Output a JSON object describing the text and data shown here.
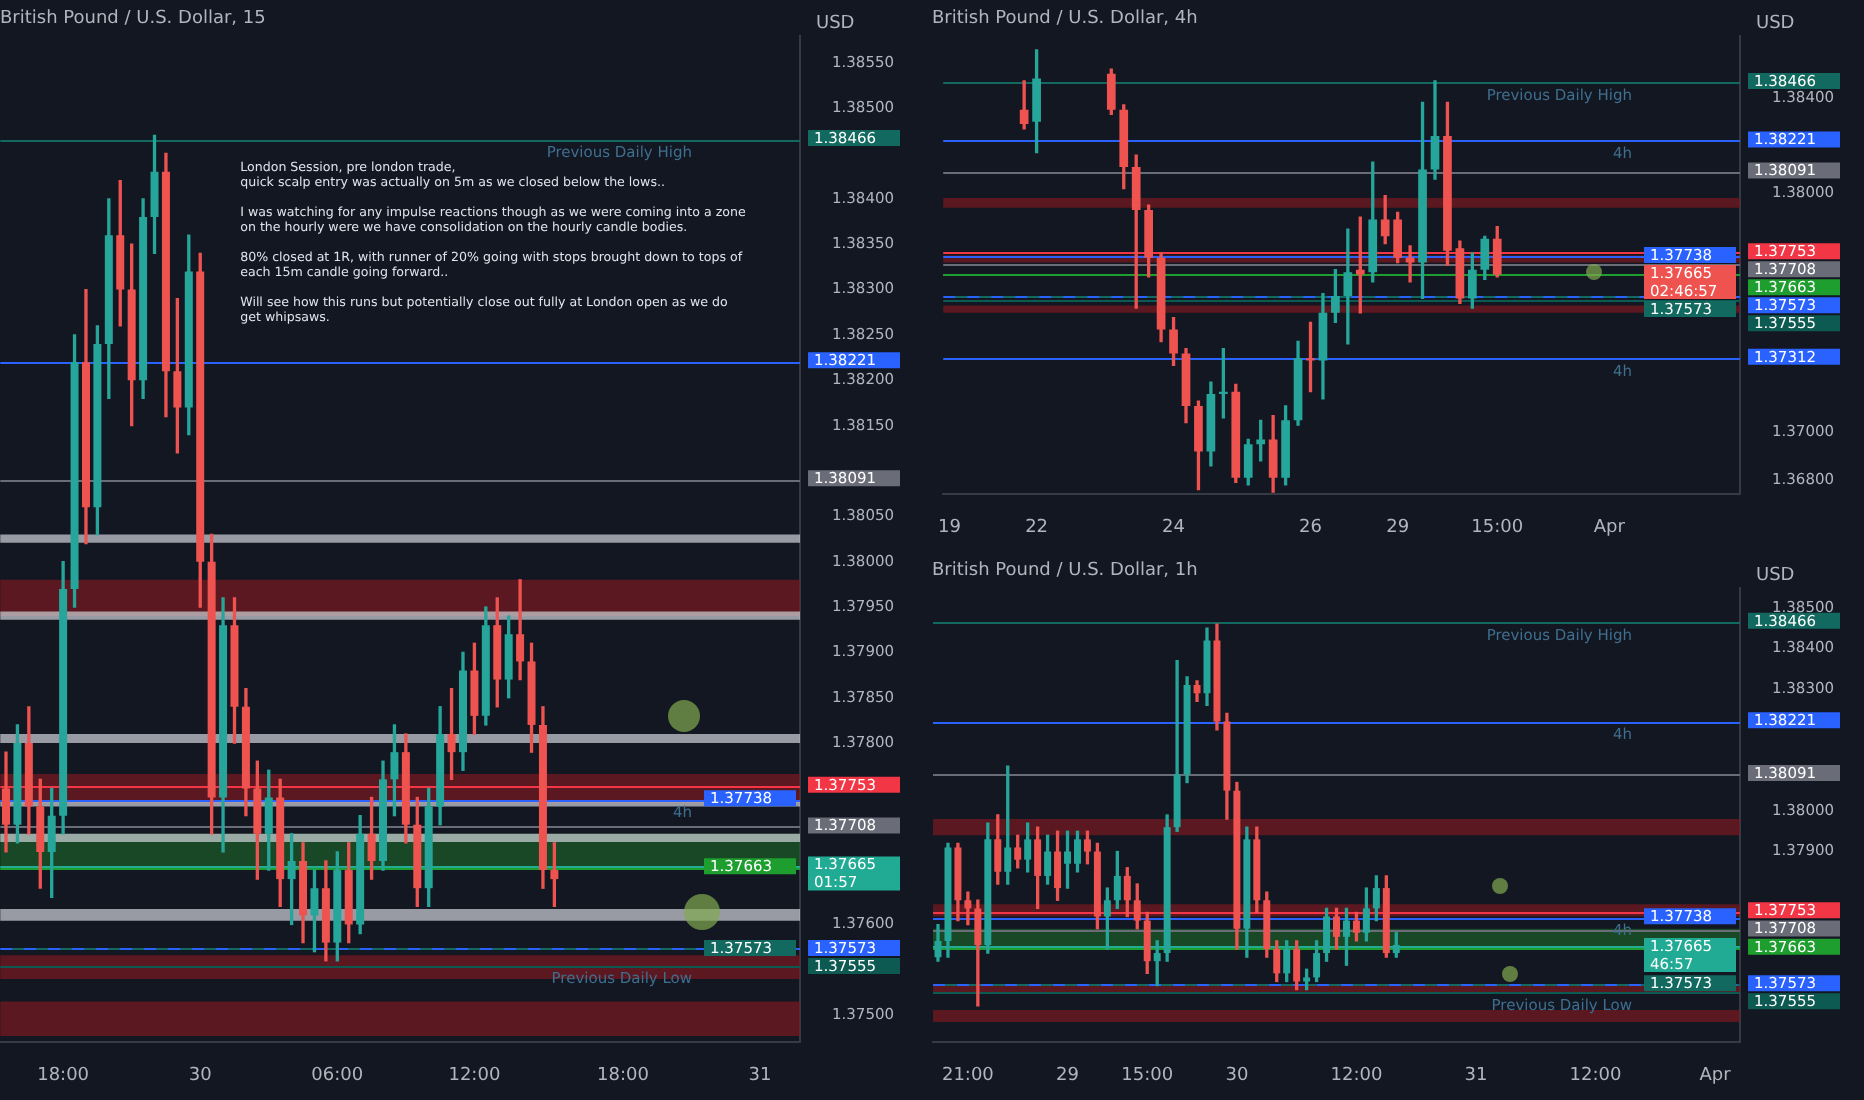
{
  "chart_data": [
    {
      "type": "candlestick",
      "title": "British Pound / U.S. Dollar, 15",
      "ylabel": "USD",
      "categories": [
        null,
        null,
        null,
        null,
        null,
        "18:00",
        null,
        null,
        null,
        null,
        null,
        null,
        null,
        null,
        null,
        null,
        null,
        "30",
        null,
        null,
        null,
        null,
        null,
        null,
        null,
        null,
        null,
        null,
        null,
        "06:00",
        null,
        null,
        null,
        null,
        null,
        null,
        null,
        null,
        null,
        null,
        null,
        "12:00",
        null,
        null,
        null,
        null,
        null,
        null,
        null,
        null,
        null,
        null,
        null,
        null,
        "18:00",
        null,
        null,
        null,
        null,
        null,
        null,
        null,
        null,
        null,
        null,
        null,
        "31",
        null,
        null,
        null
      ],
      "ohlc": [
        [
          1.3775,
          1.3779,
          1.3768,
          1.3771
        ],
        [
          1.3771,
          1.3782,
          1.3769,
          1.378
        ],
        [
          1.378,
          1.3784,
          1.377,
          1.3773
        ],
        [
          1.3773,
          1.3776,
          1.3764,
          1.3768
        ],
        [
          1.3768,
          1.3775,
          1.3763,
          1.3772
        ],
        [
          1.3772,
          1.38,
          1.377,
          1.3797
        ],
        [
          1.3797,
          1.3825,
          1.3795,
          1.3822
        ],
        [
          1.3822,
          1.383,
          1.3802,
          1.3806
        ],
        [
          1.3806,
          1.3826,
          1.3803,
          1.3824
        ],
        [
          1.3824,
          1.384,
          1.3818,
          1.3836
        ],
        [
          1.3836,
          1.3842,
          1.3826,
          1.383
        ],
        [
          1.383,
          1.3835,
          1.3815,
          1.382
        ],
        [
          1.382,
          1.384,
          1.3818,
          1.3838
        ],
        [
          1.3838,
          1.3847,
          1.3834,
          1.3843
        ],
        [
          1.3843,
          1.3845,
          1.3816,
          1.3821
        ],
        [
          1.3821,
          1.3829,
          1.3812,
          1.3817
        ],
        [
          1.3817,
          1.3836,
          1.3814,
          1.3832
        ],
        [
          1.3832,
          1.3834,
          1.3795,
          1.38
        ],
        [
          1.38,
          1.3803,
          1.377,
          1.3774
        ],
        [
          1.3774,
          1.3796,
          1.3768,
          1.3793
        ],
        [
          1.3793,
          1.3796,
          1.378,
          1.3784
        ],
        [
          1.3784,
          1.3786,
          1.3772,
          1.3775
        ],
        [
          1.3775,
          1.3778,
          1.3765,
          1.377
        ],
        [
          1.377,
          1.3777,
          1.3766,
          1.3774
        ],
        [
          1.3774,
          1.3776,
          1.3762,
          1.3765
        ],
        [
          1.3765,
          1.377,
          1.376,
          1.3767
        ],
        [
          1.3767,
          1.3769,
          1.3758,
          1.3761
        ],
        [
          1.3761,
          1.3766,
          1.3757,
          1.3764
        ],
        [
          1.3764,
          1.3767,
          1.3756,
          1.3758
        ],
        [
          1.3758,
          1.3768,
          1.3756,
          1.3766
        ],
        [
          1.3766,
          1.3769,
          1.3758,
          1.376
        ],
        [
          1.376,
          1.3772,
          1.3759,
          1.377
        ],
        [
          1.377,
          1.3774,
          1.3765,
          1.3767
        ],
        [
          1.3767,
          1.3778,
          1.3766,
          1.3776
        ],
        [
          1.3776,
          1.3782,
          1.3772,
          1.3779
        ],
        [
          1.3779,
          1.3781,
          1.3769,
          1.3771
        ],
        [
          1.3771,
          1.3774,
          1.3762,
          1.3764
        ],
        [
          1.3764,
          1.3775,
          1.3762,
          1.3773
        ],
        [
          1.3773,
          1.3784,
          1.3771,
          1.3781
        ],
        [
          1.3781,
          1.3786,
          1.3776,
          1.3779
        ],
        [
          1.3779,
          1.379,
          1.3777,
          1.3788
        ],
        [
          1.3788,
          1.3791,
          1.3781,
          1.3783
        ],
        [
          1.3783,
          1.3795,
          1.3782,
          1.3793
        ],
        [
          1.3793,
          1.3796,
          1.3784,
          1.3787
        ],
        [
          1.3787,
          1.3794,
          1.3785,
          1.3792
        ],
        [
          1.3792,
          1.3798,
          1.3787,
          1.3789
        ],
        [
          1.3789,
          1.3791,
          1.3779,
          1.3782
        ],
        [
          1.3782,
          1.3784,
          1.3764,
          1.3766
        ],
        [
          1.3766,
          1.3769,
          1.3762,
          1.3765
        ],
        null,
        null,
        null,
        null,
        null,
        null,
        null,
        null,
        null,
        null,
        null,
        null,
        null,
        null,
        null,
        null,
        null,
        null,
        null,
        null,
        null
      ],
      "ylim": [
        1.3747,
        1.3858
      ],
      "yticks": [
        {
          "value": 1.375,
          "label": "1.37500"
        },
        {
          "value": 1.376,
          "label": "1.37600"
        },
        {
          "value": 1.378,
          "label": "1.37800"
        },
        {
          "value": 1.3785,
          "label": "1.37850"
        },
        {
          "value": 1.379,
          "label": "1.37900"
        },
        {
          "value": 1.3795,
          "label": "1.37950"
        },
        {
          "value": 1.38,
          "label": "1.38000"
        },
        {
          "value": 1.3805,
          "label": "1.38050"
        },
        {
          "value": 1.3815,
          "label": "1.38150"
        },
        {
          "value": 1.382,
          "label": "1.38200"
        },
        {
          "value": 1.3825,
          "label": "1.38250"
        },
        {
          "value": 1.383,
          "label": "1.38300"
        },
        {
          "value": 1.3835,
          "label": "1.38350"
        },
        {
          "value": 1.384,
          "label": "1.38400"
        },
        {
          "value": 1.385,
          "label": "1.38500"
        },
        {
          "value": 1.3855,
          "label": "1.38550"
        }
      ],
      "ref_lines": [
        {
          "axis": "y",
          "value": 1.38466,
          "label": "1.38466",
          "color": "#12695f"
        },
        {
          "axis": "y",
          "value": 1.38221,
          "label": "1.38221",
          "color": "#2962ff"
        },
        {
          "axis": "y",
          "value": 1.38091,
          "label": "1.38091",
          "color": "#6a6d78"
        },
        {
          "axis": "y",
          "value": 1.37753,
          "label": "1.37753",
          "color": "#f23645"
        },
        {
          "axis": "y",
          "value": 1.37738,
          "label": "1.37738",
          "color": "#2962ff"
        },
        {
          "axis": "y",
          "value": 1.37708,
          "label": "1.37708",
          "color": "#6a6d78"
        },
        {
          "axis": "y",
          "value": 1.37665,
          "label": "1.37665\n01:57",
          "color": "#22ab94"
        },
        {
          "axis": "y",
          "value": 1.37663,
          "label": "1.37663",
          "color": "#1e9e2e"
        },
        {
          "axis": "y",
          "value": 1.37573,
          "label": "1.37573",
          "color": "#2962ff"
        },
        {
          "axis": "y",
          "value": 1.37573,
          "label": "1.37573",
          "color": "#12695f"
        },
        {
          "axis": "y",
          "value": 1.37555,
          "label": "1.37555",
          "color": "#0d5a52"
        }
      ],
      "bands": [
        {
          "axis": "y",
          "from": 1.3794,
          "to": 1.3798,
          "color": "#7a1a20"
        },
        {
          "axis": "y",
          "from": 1.37734,
          "to": 1.37766,
          "color": "#7a1a20"
        },
        {
          "axis": "y",
          "from": 1.3754,
          "to": 1.37566,
          "color": "#7a1a20"
        },
        {
          "axis": "y",
          "from": 1.37477,
          "to": 1.37515,
          "color": "#7a1a20"
        },
        {
          "axis": "y",
          "from": 1.3766,
          "to": 1.377,
          "color": "#1d5e2a"
        },
        {
          "axis": "y",
          "from": 1.38021,
          "to": 1.3803,
          "color": "#d1d4dc"
        },
        {
          "axis": "y",
          "from": 1.37936,
          "to": 1.37945,
          "color": "#d1d4dc"
        },
        {
          "axis": "y",
          "from": 1.378,
          "to": 1.3781,
          "color": "#d1d4dc"
        },
        {
          "axis": "y",
          "from": 1.3773,
          "to": 1.37736,
          "color": "#d1d4dc"
        },
        {
          "axis": "y",
          "from": 1.37691,
          "to": 1.377,
          "color": "#d1d4dc"
        },
        {
          "axis": "y",
          "from": 1.37604,
          "to": 1.37617,
          "color": "#d1d4dc"
        }
      ],
      "annotations": [
        "London Session, pre london trade,\nquick scalp entry was actually on 5m as we closed below the lows..\n\nI was watching for any impulse reactions though as we were coming into a zone\non the hourly were we have consolidation on the hourly candle bodies.\n\n80% closed at 1R, with runner of 20% going with stops brought down to tops of\neach 15m candle going forward..\n\nWill see how this runs but potentially close out fully at London open as we do\nget whipsaws.",
        {
          "text": "Previous Daily High",
          "y": 1.38466
        },
        {
          "text": "4h",
          "y": 1.37738
        },
        {
          "text": "Previous Daily Low",
          "y": 1.37555
        }
      ]
    },
    {
      "type": "candlestick",
      "title": "British Pound / U.S. Dollar, 4h",
      "ylabel": "USD",
      "categories": [
        "19",
        null,
        null,
        null,
        null,
        null,
        null,
        "22",
        null,
        null,
        null,
        null,
        null,
        null,
        null,
        null,
        null,
        null,
        "24",
        null,
        null,
        null,
        null,
        null,
        null,
        null,
        null,
        null,
        null,
        "26",
        null,
        null,
        null,
        null,
        null,
        null,
        "29",
        null,
        null,
        null,
        null,
        null,
        null,
        null,
        "15:00",
        null,
        null,
        null,
        null,
        null,
        null,
        null,
        null,
        "Apr",
        null,
        null,
        null,
        null,
        null,
        null,
        null,
        null,
        null,
        null
      ],
      "ohlc": [
        null,
        null,
        null,
        null,
        null,
        null,
        [
          1.3835,
          1.3847,
          1.3827,
          1.3829
        ],
        [
          1.383,
          1.386,
          1.3817,
          1.3848
        ],
        null,
        null,
        null,
        null,
        null,
        [
          1.385,
          1.3852,
          1.3833,
          1.3835
        ],
        [
          1.3835,
          1.3837,
          1.3802,
          1.3811
        ],
        [
          1.3811,
          1.3816,
          1.3752,
          1.3793
        ],
        [
          1.3793,
          1.3795,
          1.3765,
          1.3773
        ],
        [
          1.3773,
          1.3775,
          1.3738,
          1.3743
        ],
        [
          1.3743,
          1.3748,
          1.3728,
          1.3733
        ],
        [
          1.3733,
          1.3735,
          1.3704,
          1.3711
        ],
        [
          1.3711,
          1.3713,
          1.3676,
          1.3692
        ],
        [
          1.3692,
          1.3721,
          1.3686,
          1.3716
        ],
        [
          1.3716,
          1.3735,
          1.3706,
          1.3717
        ],
        [
          1.3717,
          1.372,
          1.3679,
          1.3681
        ],
        [
          1.3681,
          1.3697,
          1.3678,
          1.3695
        ],
        [
          1.3695,
          1.3705,
          1.3688,
          1.3697
        ],
        [
          1.3697,
          1.3707,
          1.3675,
          1.3681
        ],
        [
          1.3681,
          1.3711,
          1.3678,
          1.3705
        ],
        [
          1.3705,
          1.3738,
          1.3703,
          1.3731
        ],
        [
          1.3731,
          1.3746,
          1.3717,
          1.373
        ],
        [
          1.373,
          1.3758,
          1.3714,
          1.375
        ],
        [
          1.375,
          1.3768,
          1.3746,
          1.3757
        ],
        [
          1.3757,
          1.3785,
          1.3737,
          1.3767
        ],
        [
          1.3768,
          1.379,
          1.375,
          1.3766
        ],
        [
          1.3767,
          1.3813,
          1.3763,
          1.3789
        ],
        [
          1.3789,
          1.3799,
          1.3779,
          1.3782
        ],
        [
          1.3789,
          1.3792,
          1.3771,
          1.3773
        ],
        [
          1.3773,
          1.3778,
          1.3763,
          1.3771
        ],
        [
          1.3771,
          1.3838,
          1.3756,
          1.381
        ],
        [
          1.381,
          1.3847,
          1.3806,
          1.3824
        ],
        [
          1.3824,
          1.3838,
          1.377,
          1.3776
        ],
        [
          1.3777,
          1.378,
          1.3754,
          1.3756
        ],
        [
          1.3756,
          1.3775,
          1.3752,
          1.3768
        ],
        [
          1.3768,
          1.3782,
          1.3764,
          1.3781
        ],
        [
          1.3781,
          1.3786,
          1.3765,
          1.3766
        ],
        null,
        null,
        null,
        null,
        null,
        null,
        null,
        null,
        null,
        null,
        null,
        null,
        null,
        null,
        null,
        null,
        null,
        null,
        null
      ],
      "ylim": [
        1.3674,
        1.3866
      ],
      "yticks": [
        {
          "value": 1.368,
          "label": "1.36800"
        },
        {
          "value": 1.37,
          "label": "1.37000"
        },
        {
          "value": 1.38,
          "label": "1.38000"
        },
        {
          "value": 1.384,
          "label": "1.38400"
        }
      ],
      "ref_lines": [
        {
          "axis": "y",
          "value": 1.38466,
          "label": "1.38466",
          "color": "#12695f"
        },
        {
          "axis": "y",
          "value": 1.38221,
          "label": "1.38221",
          "color": "#2962ff"
        },
        {
          "axis": "y",
          "value": 1.38091,
          "label": "1.38091",
          "color": "#6a6d78"
        },
        {
          "axis": "y",
          "value": 1.37753,
          "label": "1.37753",
          "color": "#f23645"
        },
        {
          "axis": "y",
          "value": 1.37738,
          "label": "1.37738",
          "color": "#2962ff"
        },
        {
          "axis": "y",
          "value": 1.37708,
          "label": "1.37708",
          "color": "#6a6d78"
        },
        {
          "axis": "y",
          "value": 1.37665,
          "label": "1.37665\n02:46:57",
          "color": "#ef5350"
        },
        {
          "axis": "y",
          "value": 1.37663,
          "label": "1.37663",
          "color": "#1e9e2e"
        },
        {
          "axis": "y",
          "value": 1.37573,
          "label": "1.37573",
          "color": "#2962ff"
        },
        {
          "axis": "y",
          "value": 1.37573,
          "label": "1.37573",
          "color": "#12695f"
        },
        {
          "axis": "y",
          "value": 1.37555,
          "label": "1.37555",
          "color": "#0d5a52"
        },
        {
          "axis": "y",
          "value": 1.37312,
          "label": "1.37312",
          "color": "#2962ff"
        }
      ],
      "bands": [
        {
          "axis": "y",
          "from": 1.3794,
          "to": 1.3798,
          "color": "#7a1a20"
        },
        {
          "axis": "y",
          "from": 1.3771,
          "to": 1.3774,
          "color": "#7a1a20"
        },
        {
          "axis": "y",
          "from": 1.375,
          "to": 1.3753,
          "color": "#7a1a20"
        }
      ],
      "annotations": [
        {
          "text": "Previous Daily High",
          "y": 1.38466
        },
        {
          "text": "4h",
          "y": 1.38221
        },
        {
          "text": "4h",
          "y": 1.37312
        }
      ]
    },
    {
      "type": "candlestick",
      "title": "British Pound / U.S. Dollar, 1h",
      "ylabel": "USD",
      "categories": [
        null,
        null,
        null,
        "21:00",
        null,
        null,
        null,
        null,
        null,
        null,
        null,
        null,
        null,
        "29",
        null,
        null,
        null,
        null,
        null,
        null,
        null,
        "15:00",
        null,
        null,
        null,
        null,
        null,
        null,
        null,
        null,
        "30",
        null,
        null,
        null,
        null,
        null,
        null,
        null,
        null,
        null,
        null,
        null,
        "12:00",
        null,
        null,
        null,
        null,
        null,
        null,
        null,
        null,
        null,
        null,
        null,
        "31",
        null,
        null,
        null,
        null,
        null,
        null,
        null,
        null,
        null,
        null,
        null,
        "12:00",
        null,
        null,
        null,
        null,
        null,
        null,
        null,
        null,
        null,
        null,
        null,
        "Apr",
        null,
        null
      ],
      "ohlc": [
        [
          1.3764,
          1.3772,
          1.3763,
          1.3768
        ],
        [
          1.3768,
          1.3792,
          1.3764,
          1.3791
        ],
        [
          1.3791,
          1.3792,
          1.3773,
          1.3778
        ],
        [
          1.3778,
          1.378,
          1.3772,
          1.3776
        ],
        [
          1.3776,
          1.3778,
          1.3752,
          1.3767
        ],
        [
          1.3767,
          1.3797,
          1.3765,
          1.3793
        ],
        [
          1.3793,
          1.3799,
          1.3782,
          1.3785
        ],
        [
          1.3785,
          1.3811,
          1.3782,
          1.3791
        ],
        [
          1.3791,
          1.3794,
          1.3786,
          1.3788
        ],
        [
          1.3788,
          1.3797,
          1.3785,
          1.3793
        ],
        [
          1.3793,
          1.3796,
          1.3776,
          1.3784
        ],
        [
          1.3784,
          1.3794,
          1.3782,
          1.379
        ],
        [
          1.379,
          1.3795,
          1.3778,
          1.3781
        ],
        [
          1.3787,
          1.3795,
          1.3781,
          1.379
        ],
        [
          1.3787,
          1.3795,
          1.3785,
          1.3793
        ],
        [
          1.3793,
          1.3795,
          1.3787,
          1.379
        ],
        [
          1.379,
          1.3792,
          1.3771,
          1.3774
        ],
        [
          1.3774,
          1.3781,
          1.3766,
          1.3778
        ],
        [
          1.3778,
          1.379,
          1.3776,
          1.3784
        ],
        [
          1.3784,
          1.3786,
          1.3774,
          1.3778
        ],
        [
          1.3778,
          1.3782,
          1.3771,
          1.3773
        ],
        [
          1.3773,
          1.3775,
          1.376,
          1.3763
        ],
        [
          1.3763,
          1.3768,
          1.3757,
          1.3765
        ],
        [
          1.3765,
          1.3799,
          1.3763,
          1.3796
        ],
        [
          1.3796,
          1.3837,
          1.3795,
          1.3809
        ],
        [
          1.3809,
          1.3833,
          1.3807,
          1.3831
        ],
        [
          1.3831,
          1.3832,
          1.3827,
          1.3829
        ],
        [
          1.3829,
          1.3845,
          1.3826,
          1.3842
        ],
        [
          1.3842,
          1.3846,
          1.382,
          1.3822
        ],
        [
          1.3822,
          1.3824,
          1.3798,
          1.3805
        ],
        [
          1.3805,
          1.3807,
          1.3766,
          1.3771
        ],
        [
          1.3771,
          1.3796,
          1.3764,
          1.3793
        ],
        [
          1.3793,
          1.3796,
          1.3775,
          1.3778
        ],
        [
          1.3778,
          1.378,
          1.3764,
          1.3766
        ],
        [
          1.3766,
          1.3768,
          1.3758,
          1.376
        ],
        [
          1.376,
          1.3768,
          1.3758,
          1.3766
        ],
        [
          1.3766,
          1.3768,
          1.3756,
          1.3758
        ],
        [
          1.3758,
          1.3761,
          1.3756,
          1.3759
        ],
        [
          1.3759,
          1.3768,
          1.3758,
          1.3765
        ],
        [
          1.3765,
          1.3776,
          1.3763,
          1.3774
        ],
        [
          1.3774,
          1.3776,
          1.3766,
          1.3769
        ],
        [
          1.3769,
          1.3776,
          1.3762,
          1.3773
        ],
        [
          1.3773,
          1.3775,
          1.3768,
          1.377
        ],
        [
          1.377,
          1.3781,
          1.3768,
          1.3776
        ],
        [
          1.3776,
          1.3784,
          1.3773,
          1.3781
        ],
        [
          1.3781,
          1.3784,
          1.3764,
          1.3765
        ],
        [
          1.3765,
          1.377,
          1.3764,
          1.3767
        ],
        null,
        null,
        null,
        null,
        null,
        null,
        null,
        null,
        null,
        null,
        null,
        null,
        null,
        null,
        null,
        null,
        null,
        null,
        null,
        null,
        null,
        null,
        null,
        null,
        null,
        null,
        null,
        null,
        null,
        null,
        null,
        null,
        null,
        null
      ],
      "ylim": [
        1.3743,
        1.3855
      ],
      "yticks": [
        {
          "value": 1.379,
          "label": "1.37900"
        },
        {
          "value": 1.38,
          "label": "1.38000"
        },
        {
          "value": 1.383,
          "label": "1.38300"
        },
        {
          "value": 1.384,
          "label": "1.38400"
        },
        {
          "value": 1.385,
          "label": "1.38500"
        }
      ],
      "ref_lines": [
        {
          "axis": "y",
          "value": 1.38466,
          "label": "1.38466",
          "color": "#12695f"
        },
        {
          "axis": "y",
          "value": 1.38221,
          "label": "1.38221",
          "color": "#2962ff"
        },
        {
          "axis": "y",
          "value": 1.38091,
          "label": "1.38091",
          "color": "#6a6d78"
        },
        {
          "axis": "y",
          "value": 1.37753,
          "label": "1.37753",
          "color": "#f23645"
        },
        {
          "axis": "y",
          "value": 1.37738,
          "label": "1.37738",
          "color": "#2962ff"
        },
        {
          "axis": "y",
          "value": 1.37708,
          "label": "1.37708",
          "color": "#6a6d78"
        },
        {
          "axis": "y",
          "value": 1.37665,
          "label": "1.37665\n46:57",
          "color": "#22ab94"
        },
        {
          "axis": "y",
          "value": 1.37663,
          "label": "1.37663",
          "color": "#1e9e2e"
        },
        {
          "axis": "y",
          "value": 1.37573,
          "label": "1.37573",
          "color": "#2962ff"
        },
        {
          "axis": "y",
          "value": 1.37573,
          "label": "1.37573",
          "color": "#12695f"
        },
        {
          "axis": "y",
          "value": 1.37555,
          "label": "1.37555",
          "color": "#0d5a52"
        }
      ],
      "bands": [
        {
          "axis": "y",
          "from": 1.3794,
          "to": 1.3798,
          "color": "#7a1a20"
        },
        {
          "axis": "y",
          "from": 1.3774,
          "to": 1.3777,
          "color": "#7a1a20"
        },
        {
          "axis": "y",
          "from": 1.3755,
          "to": 1.3757,
          "color": "#7a1a20"
        },
        {
          "axis": "y",
          "from": 1.3748,
          "to": 1.3751,
          "color": "#7a1a20"
        },
        {
          "axis": "y",
          "from": 1.3766,
          "to": 1.3771,
          "color": "#1d5e2a"
        }
      ],
      "annotations": [
        {
          "text": "Previous Daily High",
          "y": 1.38466
        },
        {
          "text": "4h",
          "y": 1.38221
        },
        {
          "text": "4h",
          "y": 1.37738
        },
        {
          "text": "Previous Daily Low",
          "y": 1.37555
        }
      ]
    }
  ]
}
